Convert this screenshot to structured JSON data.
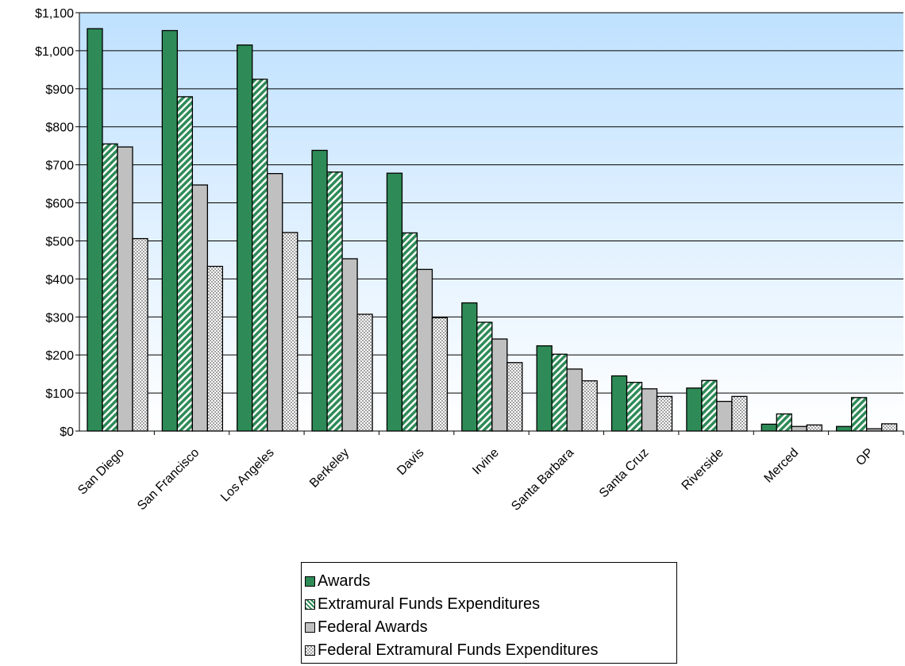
{
  "chart_data": {
    "type": "bar",
    "categories": [
      "San Diego",
      "San Francisco",
      "Los Angeles",
      "Berkeley",
      "Davis",
      "Irvine",
      "Santa Barbara",
      "Santa Cruz",
      "Riverside",
      "Merced",
      "OP"
    ],
    "series": [
      {
        "name": "Awards",
        "color": "#2e8b57",
        "pattern": "solid",
        "values": [
          1058,
          1053,
          1015,
          738,
          678,
          337,
          224,
          145,
          113,
          18,
          12
        ]
      },
      {
        "name": "Extramural Funds Expenditures",
        "color": "#2e8b57",
        "pattern": "diagonal-stripe",
        "values": [
          755,
          879,
          925,
          681,
          521,
          286,
          202,
          128,
          133,
          45,
          88
        ]
      },
      {
        "name": "Federal Awards",
        "color": "#c0c0c0",
        "pattern": "solid",
        "values": [
          747,
          647,
          677,
          453,
          425,
          242,
          163,
          111,
          78,
          12,
          6
        ]
      },
      {
        "name": "Federal Extramural Funds Expenditures",
        "color": "#c0c0c0",
        "pattern": "dotted",
        "values": [
          506,
          433,
          522,
          307,
          298,
          180,
          132,
          91,
          91,
          16,
          19
        ]
      }
    ],
    "ylim": [
      0,
      1100
    ],
    "ytick_step": 100,
    "ytick_labels": [
      "$0",
      "$100",
      "$200",
      "$300",
      "$400",
      "$500",
      "$600",
      "$700",
      "$800",
      "$900",
      "$1,000",
      "$1,100"
    ],
    "grid": true,
    "legend_position": "bottom",
    "plot_background": "gradient-light-blue-to-white"
  },
  "legend": {
    "items": [
      {
        "label": "Awards"
      },
      {
        "label": "Extramural Funds Expenditures"
      },
      {
        "label": "Federal Awards"
      },
      {
        "label": "Federal Extramural Funds Expenditures"
      }
    ]
  }
}
